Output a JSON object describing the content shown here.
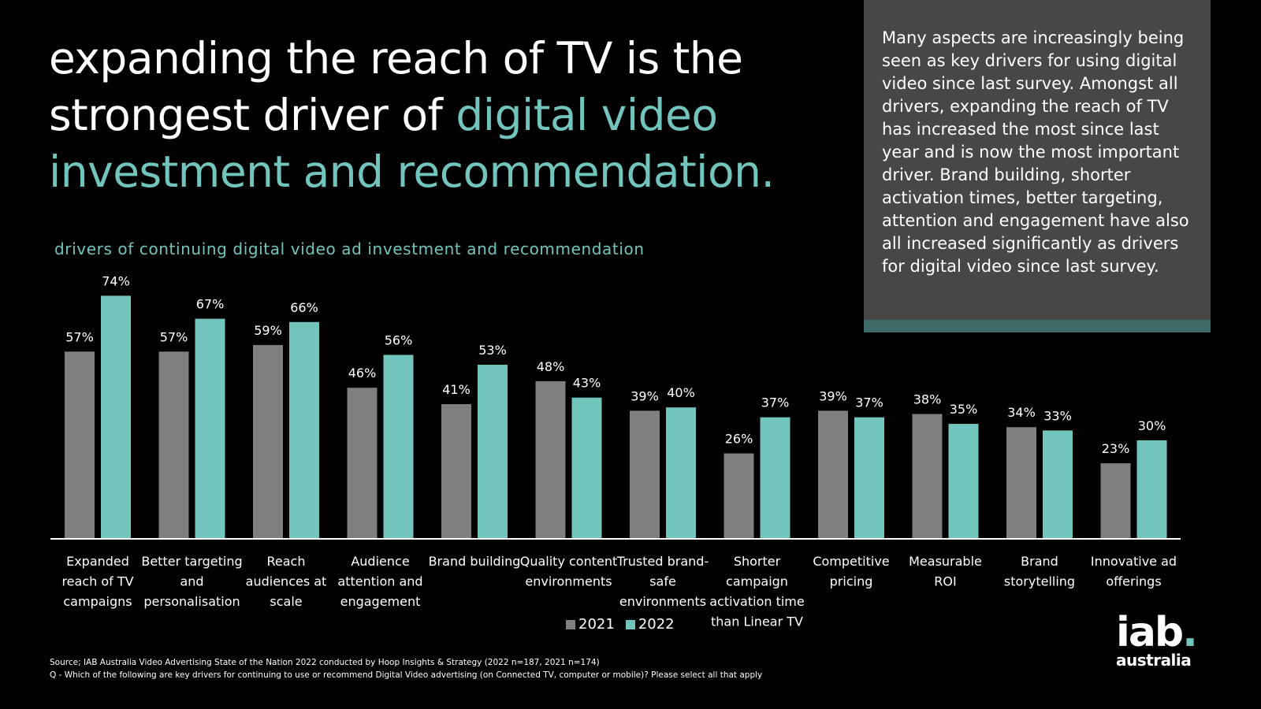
{
  "headline": {
    "part1": "expanding the reach of TV is the strongest driver of ",
    "part2": "digital video investment and recommendation."
  },
  "side_text": "Many aspects are increasingly being seen as key drivers for using digital video since last survey. Amongst all drivers, expanding the reach of TV has increased the most since last year and is now the most important driver. Brand building, shorter activation times, better targeting, attention and engagement have also all increased significantly as drivers for digital video since last survey.",
  "colors": {
    "series_2021": "#7f7f7f",
    "series_2022": "#72c5bd",
    "accent": "#72c5bd",
    "box": "#474747",
    "box_bar": "#3c6b67"
  },
  "legend": {
    "label_2021": "2021",
    "label_2022": "2022"
  },
  "footnotes": {
    "source": "Source; IAB Australia Video Advertising State of the Nation 2022 conducted by Hoop Insights & Strategy (2022 n=187, 2021 n=174)",
    "question": "Q - Which of the following are key drivers for continuing to use or recommend Digital Video advertising (on Connected TV, computer or mobile)? Please select all that apply"
  },
  "logo": {
    "top": "iab",
    "dot": ".",
    "bottom": "australia"
  },
  "chart_data": {
    "type": "bar",
    "title": "drivers of continuing digital video ad investment and recommendation",
    "categories": [
      [
        "Expanded",
        "reach of TV",
        "campaigns"
      ],
      [
        "Better targeting",
        "and",
        "personalisation"
      ],
      [
        "Reach",
        "audiences at",
        "scale"
      ],
      [
        "Audience",
        "attention and",
        "engagement"
      ],
      [
        "Brand building"
      ],
      [
        "Quality content",
        "environments"
      ],
      [
        "Trusted brand-",
        "safe",
        "environments"
      ],
      [
        "Shorter",
        "campaign",
        "activation time",
        "than Linear TV"
      ],
      [
        "Competitive",
        "pricing"
      ],
      [
        "Measurable",
        "ROI"
      ],
      [
        "Brand",
        "storytelling"
      ],
      [
        "Innovative ad",
        "offerings"
      ]
    ],
    "series": [
      {
        "name": "2021",
        "values": [
          57,
          57,
          59,
          46,
          41,
          48,
          39,
          26,
          39,
          38,
          34,
          23
        ]
      },
      {
        "name": "2022",
        "values": [
          74,
          67,
          66,
          56,
          53,
          43,
          40,
          37,
          37,
          35,
          33,
          30
        ]
      }
    ],
    "value_suffix": "%",
    "ylim": [
      0,
      80
    ],
    "grid": false,
    "legend_position": "bottom-center"
  }
}
